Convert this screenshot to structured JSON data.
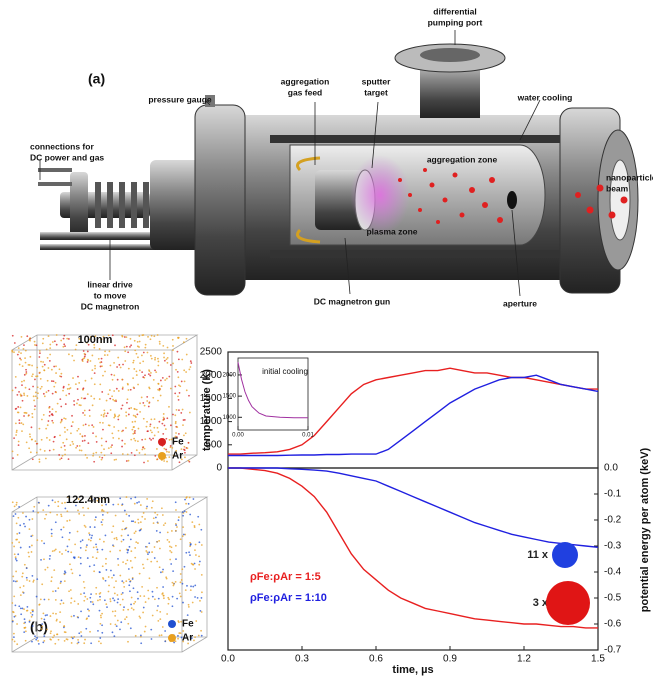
{
  "diagram": {
    "panel_label": "(a)",
    "labels": [
      {
        "lines": [
          "differential",
          "pumping port"
        ]
      },
      {
        "lines": [
          "pressure gauge"
        ]
      },
      {
        "lines": [
          "aggregation",
          "gas feed"
        ]
      },
      {
        "lines": [
          "sputter",
          "target"
        ]
      },
      {
        "lines": [
          "water cooling"
        ]
      },
      {
        "lines": [
          "connections for",
          "DC power and gas"
        ]
      },
      {
        "lines": [
          "aggregation zone"
        ]
      },
      {
        "lines": [
          "nanoparticle",
          "beam"
        ]
      },
      {
        "lines": [
          "plasma zone"
        ]
      },
      {
        "lines": [
          "linear drive",
          "to move",
          "DC magnetron"
        ]
      },
      {
        "lines": [
          "DC magnetron gun"
        ]
      },
      {
        "lines": [
          "aperture"
        ]
      }
    ]
  },
  "cubes": [
    {
      "size": "100nm",
      "legend": [
        {
          "name": "Fe",
          "color": "#d62020"
        },
        {
          "name": "Ar",
          "color": "#e8a020"
        }
      ]
    },
    {
      "size": "122.4nm",
      "legend": [
        {
          "name": "Fe",
          "color": "#2050d0"
        },
        {
          "name": "Ar",
          "color": "#e8a020"
        }
      ]
    }
  ],
  "panel_label_b": "(b)",
  "chart_data": [
    {
      "type": "line",
      "ylabel": "temperature (K)",
      "x": [
        0,
        0.05,
        0.1,
        0.15,
        0.2,
        0.25,
        0.3,
        0.35,
        0.4,
        0.45,
        0.5,
        0.55,
        0.6,
        0.65,
        0.7,
        0.75,
        0.8,
        0.85,
        0.9,
        0.95,
        1.0,
        1.05,
        1.1,
        1.15,
        1.2,
        1.25,
        1.3,
        1.35,
        1.4,
        1.45,
        1.5
      ],
      "xlim": [
        0,
        1.5
      ],
      "ylim": [
        0,
        2500
      ],
      "yticks": [
        0,
        500,
        1000,
        1500,
        2000,
        2500
      ],
      "series": [
        {
          "name": "1:5",
          "color": "#e82020",
          "values": [
            300,
            300,
            320,
            330,
            350,
            400,
            500,
            700,
            1000,
            1300,
            1600,
            1800,
            1900,
            1950,
            2000,
            2050,
            2100,
            2100,
            2150,
            2100,
            2050,
            2050,
            2000,
            1950,
            1950,
            1900,
            1850,
            1800,
            1750,
            1700,
            1700
          ]
        },
        {
          "name": "1:10",
          "color": "#2020e0",
          "values": [
            270,
            270,
            270,
            270,
            270,
            275,
            280,
            280,
            290,
            290,
            300,
            300,
            300,
            400,
            600,
            800,
            1000,
            1200,
            1400,
            1550,
            1700,
            1800,
            1900,
            1950,
            1950,
            2000,
            1900,
            1800,
            1750,
            1700,
            1650
          ]
        }
      ]
    },
    {
      "type": "line",
      "ylabel": "potential energy per atom (keV)",
      "xlabel": "time, µs",
      "x": [
        0,
        0.05,
        0.1,
        0.15,
        0.2,
        0.25,
        0.3,
        0.35,
        0.4,
        0.45,
        0.5,
        0.55,
        0.6,
        0.65,
        0.7,
        0.75,
        0.8,
        0.85,
        0.9,
        0.95,
        1.0,
        1.05,
        1.1,
        1.15,
        1.2,
        1.25,
        1.3,
        1.35,
        1.4,
        1.45,
        1.5
      ],
      "xlim": [
        0,
        1.5
      ],
      "xticks": [
        {
          "value": 0,
          "label": "0.0"
        },
        0.3,
        0.6,
        0.9,
        1.2,
        1.5
      ],
      "ylim": [
        -0.7,
        0
      ],
      "yticks": [
        {
          "value": 0,
          "label": "0.0"
        },
        -0.1,
        -0.2,
        -0.3,
        -0.4,
        -0.5,
        -0.6,
        -0.7
      ],
      "series": [
        {
          "name": "1:5",
          "color": "#e82020",
          "values": [
            0,
            0,
            -0.005,
            -0.01,
            -0.02,
            -0.04,
            -0.07,
            -0.11,
            -0.17,
            -0.25,
            -0.33,
            -0.39,
            -0.43,
            -0.47,
            -0.5,
            -0.52,
            -0.54,
            -0.55,
            -0.56,
            -0.57,
            -0.58,
            -0.585,
            -0.59,
            -0.595,
            -0.6,
            -0.6,
            -0.605,
            -0.61,
            -0.61,
            -0.615,
            -0.615
          ]
        },
        {
          "name": "1:10",
          "color": "#2020e0",
          "values": [
            0,
            0,
            0,
            0,
            0,
            -0.003,
            -0.005,
            -0.008,
            -0.012,
            -0.02,
            -0.03,
            -0.04,
            -0.05,
            -0.07,
            -0.09,
            -0.11,
            -0.13,
            -0.15,
            -0.17,
            -0.19,
            -0.21,
            -0.225,
            -0.24,
            -0.255,
            -0.265,
            -0.275,
            -0.285,
            -0.29,
            -0.295,
            -0.3,
            -0.305
          ]
        }
      ],
      "annotations": [
        "ρFe:ρAr = 1:5",
        "ρFe:ρAr = 1:10",
        "11 x",
        "3 x"
      ]
    },
    {
      "type": "line",
      "title": "initial cooling",
      "x": [
        0,
        0.0005,
        0.001,
        0.0015,
        0.002,
        0.003,
        0.004,
        0.006,
        0.008,
        0.01
      ],
      "xlim": [
        0,
        0.01
      ],
      "xticks": [
        {
          "value": 0,
          "label": "0.00"
        },
        0.01
      ],
      "ylim": [
        700,
        2400
      ],
      "yticks": [
        1000,
        1500,
        2000
      ],
      "series": [
        {
          "color": "#a030a0",
          "values": [
            2300,
            1900,
            1600,
            1400,
            1250,
            1100,
            1030,
            1000,
            990,
            990
          ]
        }
      ]
    }
  ]
}
